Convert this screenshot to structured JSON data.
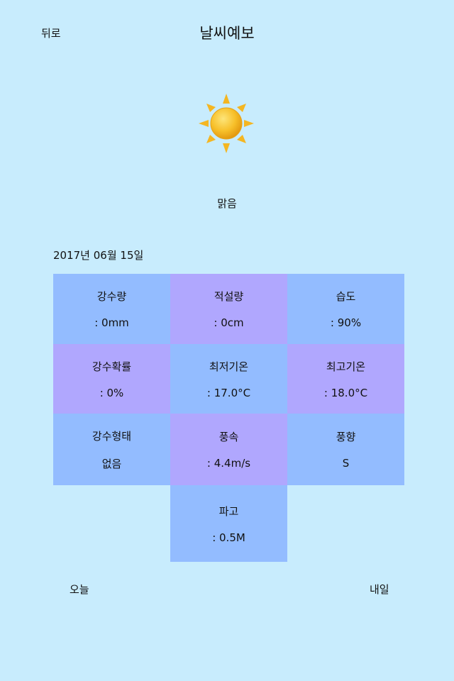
{
  "header": {
    "back_label": "뒤로",
    "title": "날씨예보"
  },
  "weather": {
    "icon": "sun-icon",
    "condition": "맑음"
  },
  "date": "2017년 06월 15일",
  "grid": [
    {
      "label": "강수량",
      "value": ": 0mm"
    },
    {
      "label": "적설량",
      "value": ": 0cm"
    },
    {
      "label": "습도",
      "value": ": 90%"
    },
    {
      "label": "강수확률",
      "value": ": 0%"
    },
    {
      "label": "최저기온",
      "value": ": 17.0°C"
    },
    {
      "label": "최고기온",
      "value": ": 18.0°C"
    },
    {
      "label": "강수형태",
      "value": "없음"
    },
    {
      "label": "풍속",
      "value": ": 4.4m/s"
    },
    {
      "label": "풍향",
      "value": "S"
    },
    {
      "label": "파고",
      "value": ": 0.5M"
    }
  ],
  "nav": {
    "today_label": "오늘",
    "tomorrow_label": "내일"
  },
  "colors": {
    "background": "#c8ecfd",
    "cell_blue": "#93bcff",
    "cell_purple": "#b0a7fe",
    "sun": "#f7b91e"
  }
}
